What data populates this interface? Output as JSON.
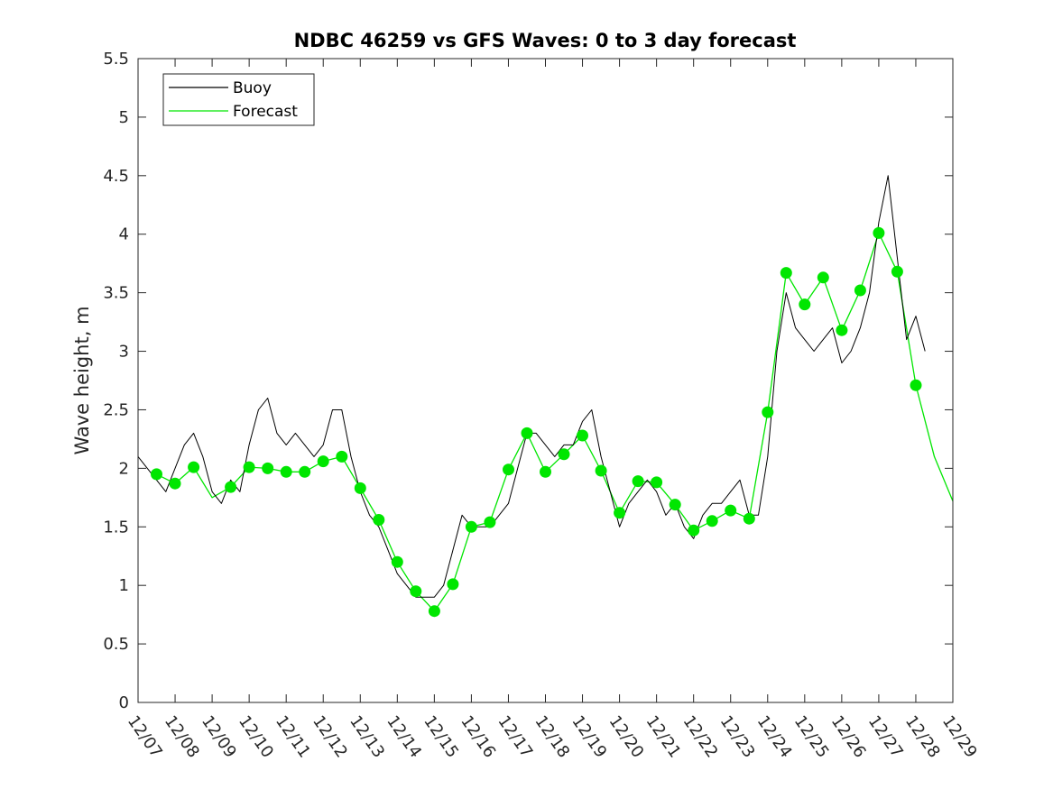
{
  "chart_data": {
    "type": "line",
    "title": "NDBC 46259 vs GFS Waves: 0 to 3 day forecast",
    "xlabel": "",
    "ylabel": "Wave height, m",
    "xlim": [
      7,
      29
    ],
    "ylim": [
      0,
      5.5
    ],
    "grid": false,
    "legend_position": "top-left",
    "x_ticks": [
      {
        "value": 7,
        "label": "12/07"
      },
      {
        "value": 8,
        "label": "12/08"
      },
      {
        "value": 9,
        "label": "12/09"
      },
      {
        "value": 10,
        "label": "12/10"
      },
      {
        "value": 11,
        "label": "12/11"
      },
      {
        "value": 12,
        "label": "12/12"
      },
      {
        "value": 13,
        "label": "12/13"
      },
      {
        "value": 14,
        "label": "12/14"
      },
      {
        "value": 15,
        "label": "12/15"
      },
      {
        "value": 16,
        "label": "12/16"
      },
      {
        "value": 17,
        "label": "12/17"
      },
      {
        "value": 18,
        "label": "12/18"
      },
      {
        "value": 19,
        "label": "12/19"
      },
      {
        "value": 20,
        "label": "12/20"
      },
      {
        "value": 21,
        "label": "12/21"
      },
      {
        "value": 22,
        "label": "12/22"
      },
      {
        "value": 23,
        "label": "12/23"
      },
      {
        "value": 24,
        "label": "12/24"
      },
      {
        "value": 25,
        "label": "12/25"
      },
      {
        "value": 26,
        "label": "12/26"
      },
      {
        "value": 27,
        "label": "12/27"
      },
      {
        "value": 28,
        "label": "12/28"
      },
      {
        "value": 29,
        "label": "12/29"
      }
    ],
    "y_ticks": [
      {
        "value": 0,
        "label": "0"
      },
      {
        "value": 0.5,
        "label": "0.5"
      },
      {
        "value": 1,
        "label": "1"
      },
      {
        "value": 1.5,
        "label": "1.5"
      },
      {
        "value": 2,
        "label": "2"
      },
      {
        "value": 2.5,
        "label": "2.5"
      },
      {
        "value": 3,
        "label": "3"
      },
      {
        "value": 3.5,
        "label": "3.5"
      },
      {
        "value": 4,
        "label": "4"
      },
      {
        "value": 4.5,
        "label": "4.5"
      },
      {
        "value": 5,
        "label": "5"
      },
      {
        "value": 5.5,
        "label": "5.5"
      }
    ],
    "legend": [
      {
        "label": "Buoy",
        "color": "#000000"
      },
      {
        "label": "Forecast",
        "color": "#00e600"
      }
    ],
    "series": [
      {
        "name": "Buoy",
        "color": "#000000",
        "x": [
          7.0,
          7.25,
          7.5,
          7.75,
          8.0,
          8.25,
          8.5,
          8.75,
          9.0,
          9.25,
          9.5,
          9.75,
          10.0,
          10.25,
          10.5,
          10.75,
          11.0,
          11.25,
          11.5,
          11.75,
          12.0,
          12.25,
          12.5,
          12.75,
          13.0,
          13.25,
          13.5,
          13.75,
          14.0,
          14.25,
          14.5,
          14.75,
          15.0,
          15.25,
          15.5,
          15.75,
          16.0,
          16.25,
          16.5,
          16.75,
          17.0,
          17.25,
          17.5,
          17.75,
          18.0,
          18.25,
          18.5,
          18.75,
          19.0,
          19.25,
          19.5,
          19.75,
          20.0,
          20.25,
          20.5,
          20.75,
          21.0,
          21.25,
          21.5,
          21.75,
          22.0,
          22.25,
          22.5,
          22.75,
          23.0,
          23.25,
          23.5,
          23.75,
          24.0,
          24.25,
          24.5,
          24.75,
          25.0,
          25.25,
          25.5,
          25.75,
          26.0,
          26.25,
          26.5,
          26.75,
          27.0,
          27.25,
          27.5,
          27.75,
          28.0,
          28.25
        ],
        "y": [
          2.1,
          2.0,
          1.9,
          1.8,
          2.0,
          2.2,
          2.3,
          2.1,
          1.8,
          1.7,
          1.9,
          1.8,
          2.2,
          2.5,
          2.6,
          2.3,
          2.2,
          2.3,
          2.2,
          2.1,
          2.2,
          2.5,
          2.5,
          2.1,
          1.8,
          1.6,
          1.5,
          1.3,
          1.1,
          1.0,
          0.9,
          0.9,
          0.9,
          1.0,
          1.3,
          1.6,
          1.5,
          1.5,
          1.5,
          1.6,
          1.7,
          2.0,
          2.3,
          2.3,
          2.2,
          2.1,
          2.2,
          2.2,
          2.4,
          2.5,
          2.1,
          1.8,
          1.5,
          1.7,
          1.8,
          1.9,
          1.8,
          1.6,
          1.7,
          1.5,
          1.4,
          1.6,
          1.7,
          1.7,
          1.8,
          1.9,
          1.6,
          1.6,
          2.1,
          3.0,
          3.5,
          3.2,
          3.1,
          3.0,
          3.1,
          3.2,
          2.9,
          3.0,
          3.2,
          3.5,
          4.1,
          4.5,
          3.8,
          3.1,
          3.3,
          3.0
        ]
      },
      {
        "name": "Forecast",
        "color": "#00e600",
        "x": [
          7.5,
          8.0,
          8.5,
          9.0,
          9.5,
          10.0,
          10.5,
          11.0,
          11.5,
          12.0,
          12.5,
          13.0,
          13.5,
          14.0,
          14.5,
          15.0,
          15.5,
          16.0,
          16.5,
          17.0,
          17.5,
          18.0,
          18.5,
          19.0,
          19.5,
          20.0,
          20.5,
          21.0,
          21.5,
          22.0,
          22.5,
          23.0,
          23.5,
          24.0,
          24.5,
          25.0,
          25.5,
          26.0,
          26.5,
          27.0,
          27.5,
          28.0,
          28.5,
          29.0
        ],
        "y": [
          1.95,
          1.87,
          2.01,
          1.75,
          1.84,
          2.01,
          2.0,
          1.97,
          1.97,
          2.06,
          2.1,
          1.83,
          1.56,
          1.2,
          0.95,
          0.78,
          1.01,
          1.5,
          1.54,
          1.99,
          2.3,
          1.97,
          2.12,
          2.28,
          1.98,
          1.62,
          1.89,
          1.88,
          1.69,
          1.47,
          1.55,
          1.64,
          1.57,
          2.48,
          3.67,
          3.4,
          3.63,
          3.18,
          3.52,
          4.01,
          3.68,
          2.71,
          2.1,
          1.72
        ]
      }
    ],
    "forecast_markers": {
      "x": [
        7.5,
        8.0,
        8.5,
        9.5,
        10.0,
        10.5,
        11.0,
        11.5,
        12.0,
        12.5,
        13.0,
        13.5,
        14.0,
        14.5,
        15.0,
        15.5,
        16.0,
        16.5,
        17.0,
        17.5,
        18.0,
        18.5,
        19.0,
        19.5,
        20.0,
        20.5,
        21.0,
        21.5,
        22.0,
        22.5,
        23.0,
        23.5,
        24.0,
        24.5,
        25.0,
        25.5,
        26.0,
        26.5,
        27.0,
        27.5,
        28.0
      ],
      "y": [
        1.95,
        1.87,
        2.01,
        1.84,
        2.01,
        2.0,
        1.97,
        1.97,
        2.06,
        2.1,
        1.83,
        1.56,
        1.2,
        0.95,
        0.78,
        1.01,
        1.5,
        1.54,
        1.99,
        2.3,
        1.97,
        2.12,
        2.28,
        1.98,
        1.62,
        1.89,
        1.88,
        1.69,
        1.47,
        1.55,
        1.64,
        1.57,
        2.48,
        3.67,
        3.4,
        3.63,
        3.18,
        3.52,
        4.01,
        3.68,
        2.71
      ]
    }
  }
}
